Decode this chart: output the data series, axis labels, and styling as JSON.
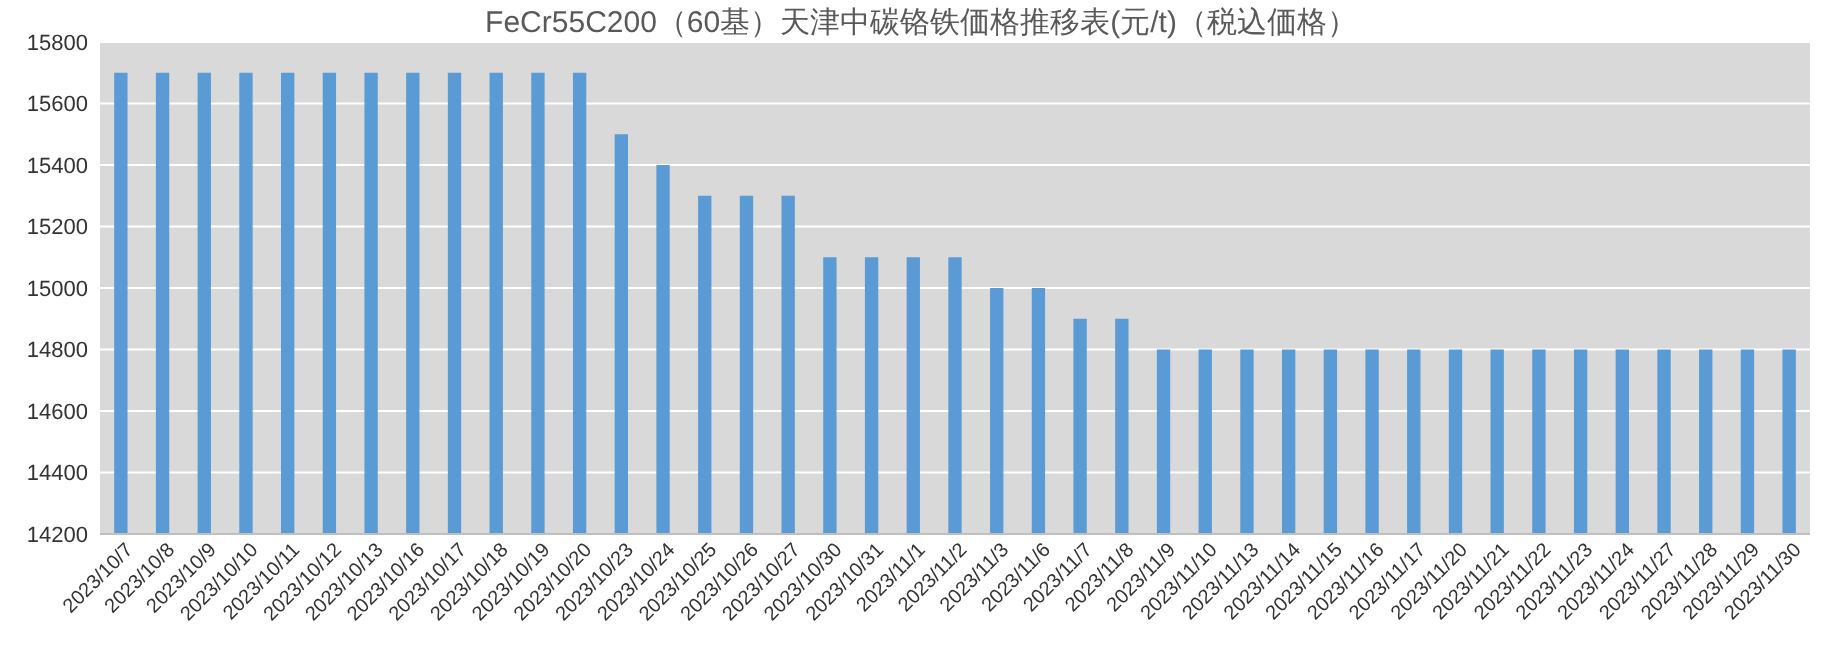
{
  "chart_data": {
    "type": "bar",
    "title": "FeCr55C200（60基）天津中碳铬铁価格推移表(元/t)（税込価格）",
    "categories": [
      "2023/10/7",
      "2023/10/8",
      "2023/10/9",
      "2023/10/10",
      "2023/10/11",
      "2023/10/12",
      "2023/10/13",
      "2023/10/16",
      "2023/10/17",
      "2023/10/18",
      "2023/10/19",
      "2023/10/20",
      "2023/10/23",
      "2023/10/24",
      "2023/10/25",
      "2023/10/26",
      "2023/10/27",
      "2023/10/30",
      "2023/10/31",
      "2023/11/1",
      "2023/11/2",
      "2023/11/3",
      "2023/11/6",
      "2023/11/7",
      "2023/11/8",
      "2023/11/9",
      "2023/11/10",
      "2023/11/13",
      "2023/11/14",
      "2023/11/15",
      "2023/11/16",
      "2023/11/17",
      "2023/11/20",
      "2023/11/21",
      "2023/11/22",
      "2023/11/23",
      "2023/11/24",
      "2023/11/27",
      "2023/11/28",
      "2023/11/29",
      "2023/11/30"
    ],
    "values": [
      15700,
      15700,
      15700,
      15700,
      15700,
      15700,
      15700,
      15700,
      15700,
      15700,
      15700,
      15700,
      15500,
      15400,
      15300,
      15300,
      15300,
      15100,
      15100,
      15100,
      15100,
      15000,
      15000,
      14900,
      14900,
      14800,
      14800,
      14800,
      14800,
      14800,
      14800,
      14800,
      14800,
      14800,
      14800,
      14800,
      14800,
      14800,
      14800,
      14800,
      14800
    ],
    "color": "#5b9bd5",
    "ylim": [
      14200,
      15800
    ],
    "yticks": [
      14200,
      14400,
      14600,
      14800,
      15000,
      15200,
      15400,
      15600,
      15800
    ],
    "grid": "y"
  }
}
